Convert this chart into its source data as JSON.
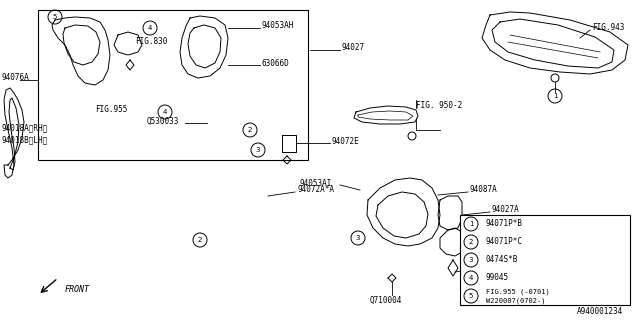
{
  "bg_color": "#ffffff",
  "line_color": "#000000",
  "diagram_number": "A940001234",
  "parts": [
    {
      "num": 1,
      "code": "94071P*B"
    },
    {
      "num": 2,
      "code": "94071P*C"
    },
    {
      "num": 3,
      "code": "0474S*B"
    },
    {
      "num": 4,
      "code": "99045"
    },
    {
      "num": 5,
      "code": "FIG.955 (-0701)\nW220007(0702-)"
    }
  ]
}
